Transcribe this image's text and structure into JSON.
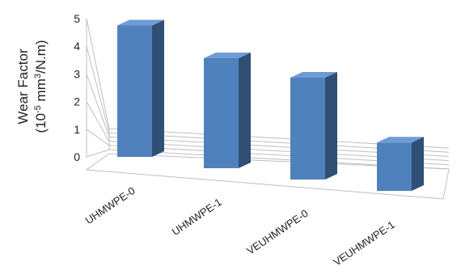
{
  "chart_data": {
    "type": "bar",
    "categories": [
      "UHMWPE-0",
      "UHMWPE-1",
      "VEUHMWPE-0",
      "VEUHMWPE-1"
    ],
    "values": [
      4.9,
      4.1,
      3.8,
      1.8
    ],
    "title": "",
    "xlabel": "",
    "ylabel_line1": "Wear Factor",
    "ylabel_line2_pre": "(10",
    "ylabel_line2_sup1": "-5",
    "ylabel_line2_mid": " mm",
    "ylabel_line2_sup2": "3",
    "ylabel_line2_post": "/N.m)",
    "ylim": [
      0,
      5
    ],
    "yticks": [
      "0",
      "1",
      "2",
      "3",
      "4",
      "5"
    ],
    "grid": true,
    "style": "3d-column",
    "colors": {
      "front": "#4f81bd",
      "side": "#2f4f75",
      "top": "#6f9bd6"
    }
  }
}
